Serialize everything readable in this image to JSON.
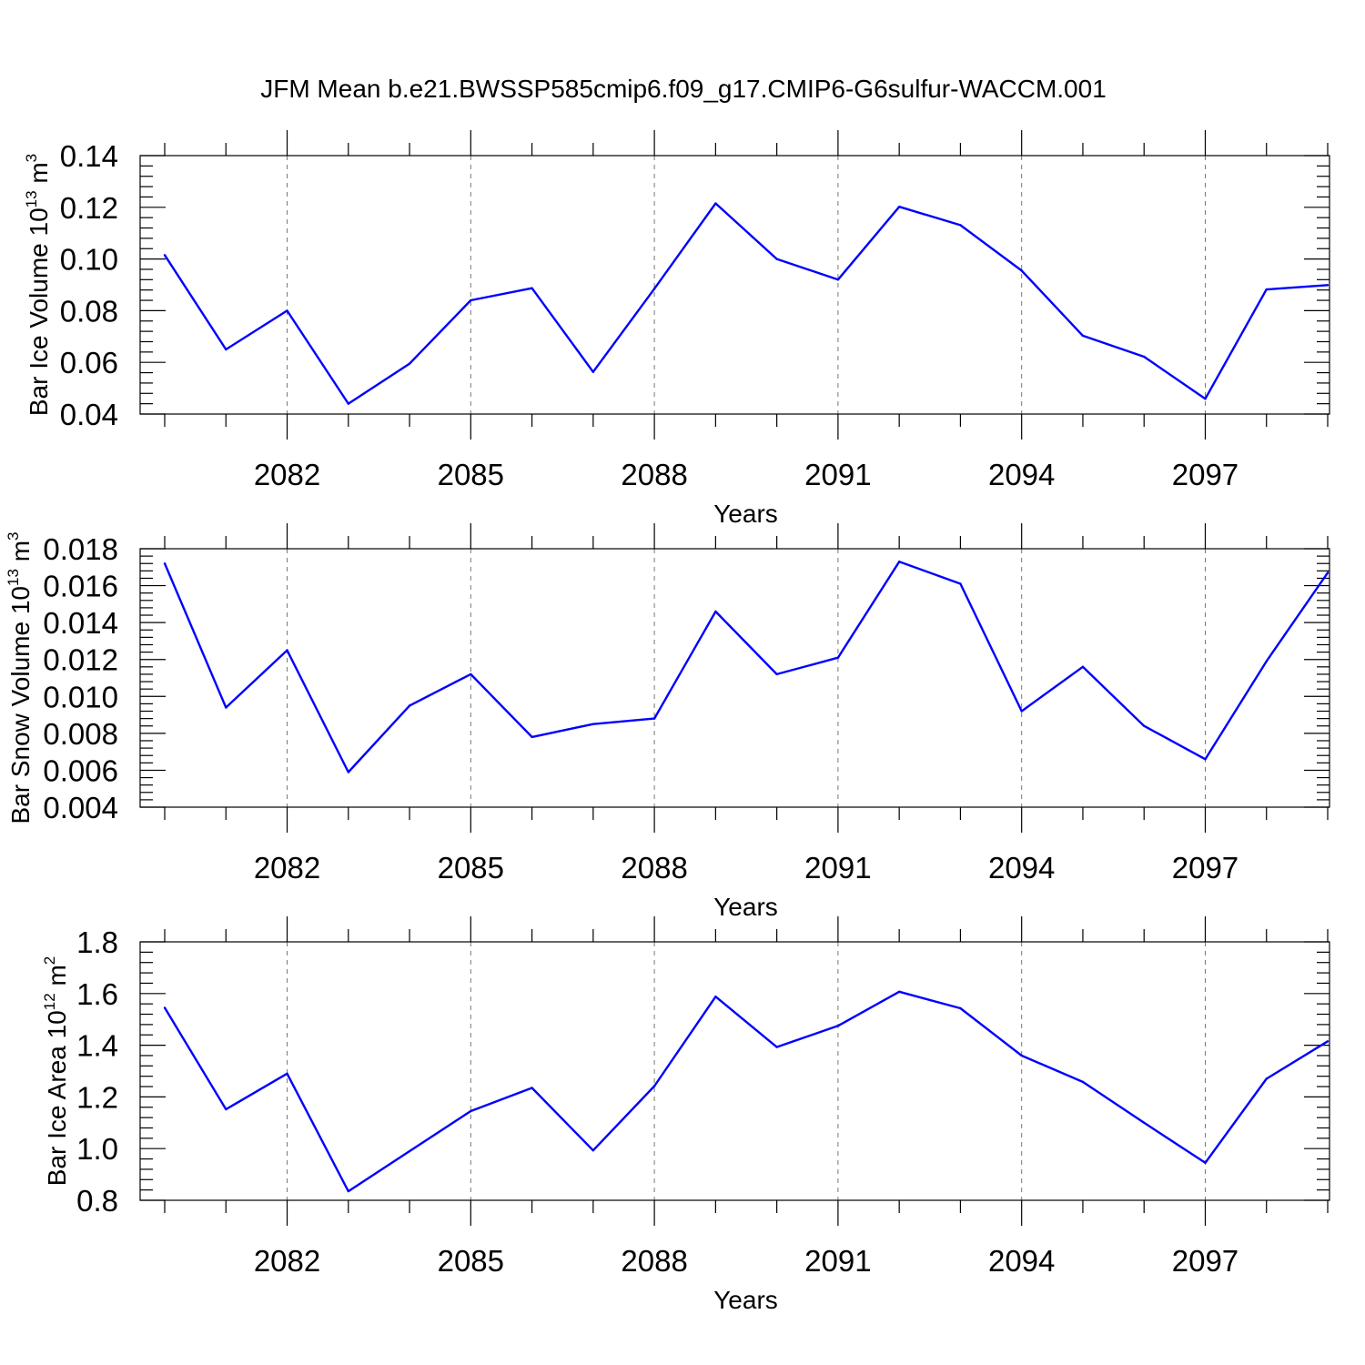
{
  "title": "JFM Mean b.e21.BWSSP585cmip6.f09_g17.CMIP6-G6sulfur-WACCM.001",
  "colors": {
    "series": "#0000ff",
    "grid": "#777777",
    "axis": "#000000"
  },
  "chart_data": [
    {
      "type": "line",
      "title": "",
      "xlabel": "Years",
      "ylabel": {
        "text": "Bar Ice Volume 10",
        "exp": "13",
        "unit": " m",
        "unit_exp": "3"
      },
      "x": [
        2080,
        2081,
        2082,
        2083,
        2084,
        2085,
        2086,
        2087,
        2088,
        2089,
        2090,
        2091,
        2092,
        2093,
        2094,
        2095,
        2096,
        2097,
        2098,
        2099
      ],
      "values": [
        0.1015,
        0.065,
        0.08,
        0.044,
        0.0595,
        0.084,
        0.0887,
        0.0563,
        0.0885,
        0.1215,
        0.1,
        0.092,
        0.1202,
        0.1131,
        0.0955,
        0.0703,
        0.0622,
        0.0459,
        0.0882,
        0.0899
      ],
      "xlim": [
        2080,
        2099
      ],
      "ylim": [
        0.04,
        0.14
      ],
      "xticks": [
        "2082",
        "2085",
        "2088",
        "2091",
        "2094",
        "2097"
      ],
      "yticks": [
        "0.04",
        "0.06",
        "0.08",
        "0.10",
        "0.12",
        "0.14"
      ],
      "grid": "vertical dashed at major x ticks",
      "legend": "none"
    },
    {
      "type": "line",
      "title": "",
      "xlabel": "Years",
      "ylabel": {
        "text": "Bar Snow Volume 10",
        "exp": "13",
        "unit": " m",
        "unit_exp": "3"
      },
      "x": [
        2080,
        2081,
        2082,
        2083,
        2084,
        2085,
        2086,
        2087,
        2088,
        2089,
        2090,
        2091,
        2092,
        2093,
        2094,
        2095,
        2096,
        2097,
        2098,
        2099
      ],
      "values": [
        0.0172,
        0.0094,
        0.0125,
        0.0059,
        0.0095,
        0.0112,
        0.0078,
        0.0085,
        0.0088,
        0.0146,
        0.0112,
        0.0121,
        0.0173,
        0.0161,
        0.0092,
        0.0116,
        0.0084,
        0.0066,
        0.0119,
        0.0167
      ],
      "xlim": [
        2080,
        2099
      ],
      "ylim": [
        0.004,
        0.018
      ],
      "xticks": [
        "2082",
        "2085",
        "2088",
        "2091",
        "2094",
        "2097"
      ],
      "yticks": [
        "0.004",
        "0.006",
        "0.008",
        "0.010",
        "0.012",
        "0.014",
        "0.016",
        "0.018"
      ],
      "grid": "vertical dashed at major x ticks",
      "legend": "none"
    },
    {
      "type": "line",
      "title": "",
      "xlabel": "Years",
      "ylabel": {
        "text": "Bar Ice Area 10",
        "exp": "12",
        "unit": " m",
        "unit_exp": "2"
      },
      "x": [
        2080,
        2081,
        2082,
        2083,
        2084,
        2085,
        2086,
        2087,
        2088,
        2089,
        2090,
        2091,
        2092,
        2093,
        2094,
        2095,
        2096,
        2097,
        2098,
        2099
      ],
      "values": [
        1.545,
        1.152,
        1.29,
        0.835,
        0.99,
        1.145,
        1.235,
        0.993,
        1.242,
        1.588,
        1.393,
        1.475,
        1.607,
        1.543,
        1.36,
        1.258,
        1.1,
        0.945,
        1.27,
        1.415
      ],
      "xlim": [
        2080,
        2099
      ],
      "ylim": [
        0.8,
        1.8
      ],
      "xticks": [
        "2082",
        "2085",
        "2088",
        "2091",
        "2094",
        "2097"
      ],
      "yticks": [
        "0.8",
        "1.0",
        "1.2",
        "1.4",
        "1.6",
        "1.8"
      ],
      "grid": "vertical dashed at major x ticks",
      "legend": "none"
    }
  ]
}
